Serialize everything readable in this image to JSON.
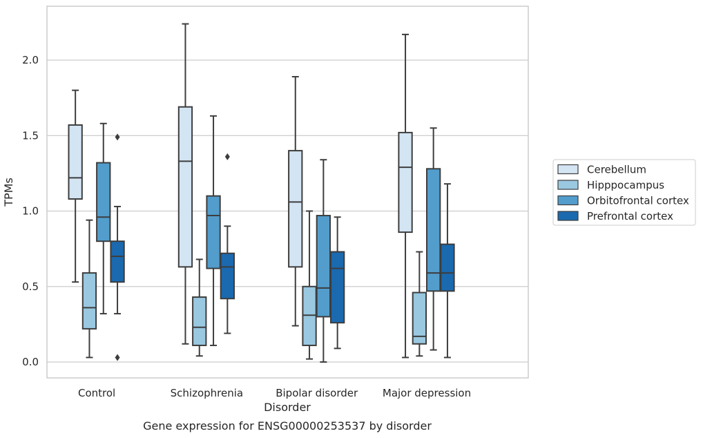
{
  "caption": "Gene expression for ENSG00000253537 by disorder",
  "chart_data": {
    "type": "box",
    "xlabel": "Disorder",
    "ylabel": "TPMs",
    "categories": [
      "Control",
      "Schizophrenia",
      "Bipolar disorder",
      "Major depression"
    ],
    "ylim": [
      -0.1,
      2.35
    ],
    "yticks": [
      0.0,
      0.5,
      1.0,
      1.5,
      2.0
    ],
    "ytick_labels": [
      "0.0",
      "0.5",
      "1.0",
      "1.5",
      "2.0"
    ],
    "grid": "horizontal",
    "legend_position": "right",
    "series": [
      {
        "name": "Cerebellum",
        "color": "#d3e4f3",
        "boxes": [
          {
            "whislo": 0.53,
            "q1": 1.08,
            "med": 1.22,
            "q3": 1.57,
            "whishi": 1.8,
            "fliers": []
          },
          {
            "whislo": 0.12,
            "q1": 0.63,
            "med": 1.33,
            "q3": 1.69,
            "whishi": 2.24,
            "fliers": []
          },
          {
            "whislo": 0.24,
            "q1": 0.63,
            "med": 1.06,
            "q3": 1.4,
            "whishi": 1.89,
            "fliers": []
          },
          {
            "whislo": 0.03,
            "q1": 0.86,
            "med": 1.29,
            "q3": 1.52,
            "whishi": 2.17,
            "fliers": []
          }
        ]
      },
      {
        "name": "Hipppocampus",
        "color": "#9ac8e0",
        "boxes": [
          {
            "whislo": 0.03,
            "q1": 0.22,
            "med": 0.36,
            "q3": 0.59,
            "whishi": 0.94,
            "fliers": []
          },
          {
            "whislo": 0.04,
            "q1": 0.11,
            "med": 0.23,
            "q3": 0.43,
            "whishi": 0.68,
            "fliers": []
          },
          {
            "whislo": 0.02,
            "q1": 0.11,
            "med": 0.31,
            "q3": 0.5,
            "whishi": 1.0,
            "fliers": []
          },
          {
            "whislo": 0.04,
            "q1": 0.12,
            "med": 0.17,
            "q3": 0.46,
            "whishi": 0.73,
            "fliers": []
          }
        ]
      },
      {
        "name": "Orbitofrontal cortex",
        "color": "#529dcc",
        "boxes": [
          {
            "whislo": 0.32,
            "q1": 0.8,
            "med": 0.96,
            "q3": 1.32,
            "whishi": 1.58,
            "fliers": []
          },
          {
            "whislo": 0.11,
            "q1": 0.62,
            "med": 0.97,
            "q3": 1.1,
            "whishi": 1.63,
            "fliers": []
          },
          {
            "whislo": 0.0,
            "q1": 0.3,
            "med": 0.49,
            "q3": 0.97,
            "whishi": 1.34,
            "fliers": []
          },
          {
            "whislo": 0.08,
            "q1": 0.47,
            "med": 0.59,
            "q3": 1.28,
            "whishi": 1.55,
            "fliers": []
          }
        ]
      },
      {
        "name": "Prefrontal cortex",
        "color": "#1b69af",
        "boxes": [
          {
            "whislo": 0.32,
            "q1": 0.53,
            "med": 0.7,
            "q3": 0.8,
            "whishi": 1.03,
            "fliers": [
              1.49,
              0.03
            ]
          },
          {
            "whislo": 0.19,
            "q1": 0.42,
            "med": 0.63,
            "q3": 0.72,
            "whishi": 0.9,
            "fliers": [
              1.36
            ]
          },
          {
            "whislo": 0.09,
            "q1": 0.26,
            "med": 0.62,
            "q3": 0.73,
            "whishi": 0.96,
            "fliers": []
          },
          {
            "whislo": 0.03,
            "q1": 0.47,
            "med": 0.59,
            "q3": 0.78,
            "whishi": 1.18,
            "fliers": []
          }
        ]
      }
    ]
  }
}
